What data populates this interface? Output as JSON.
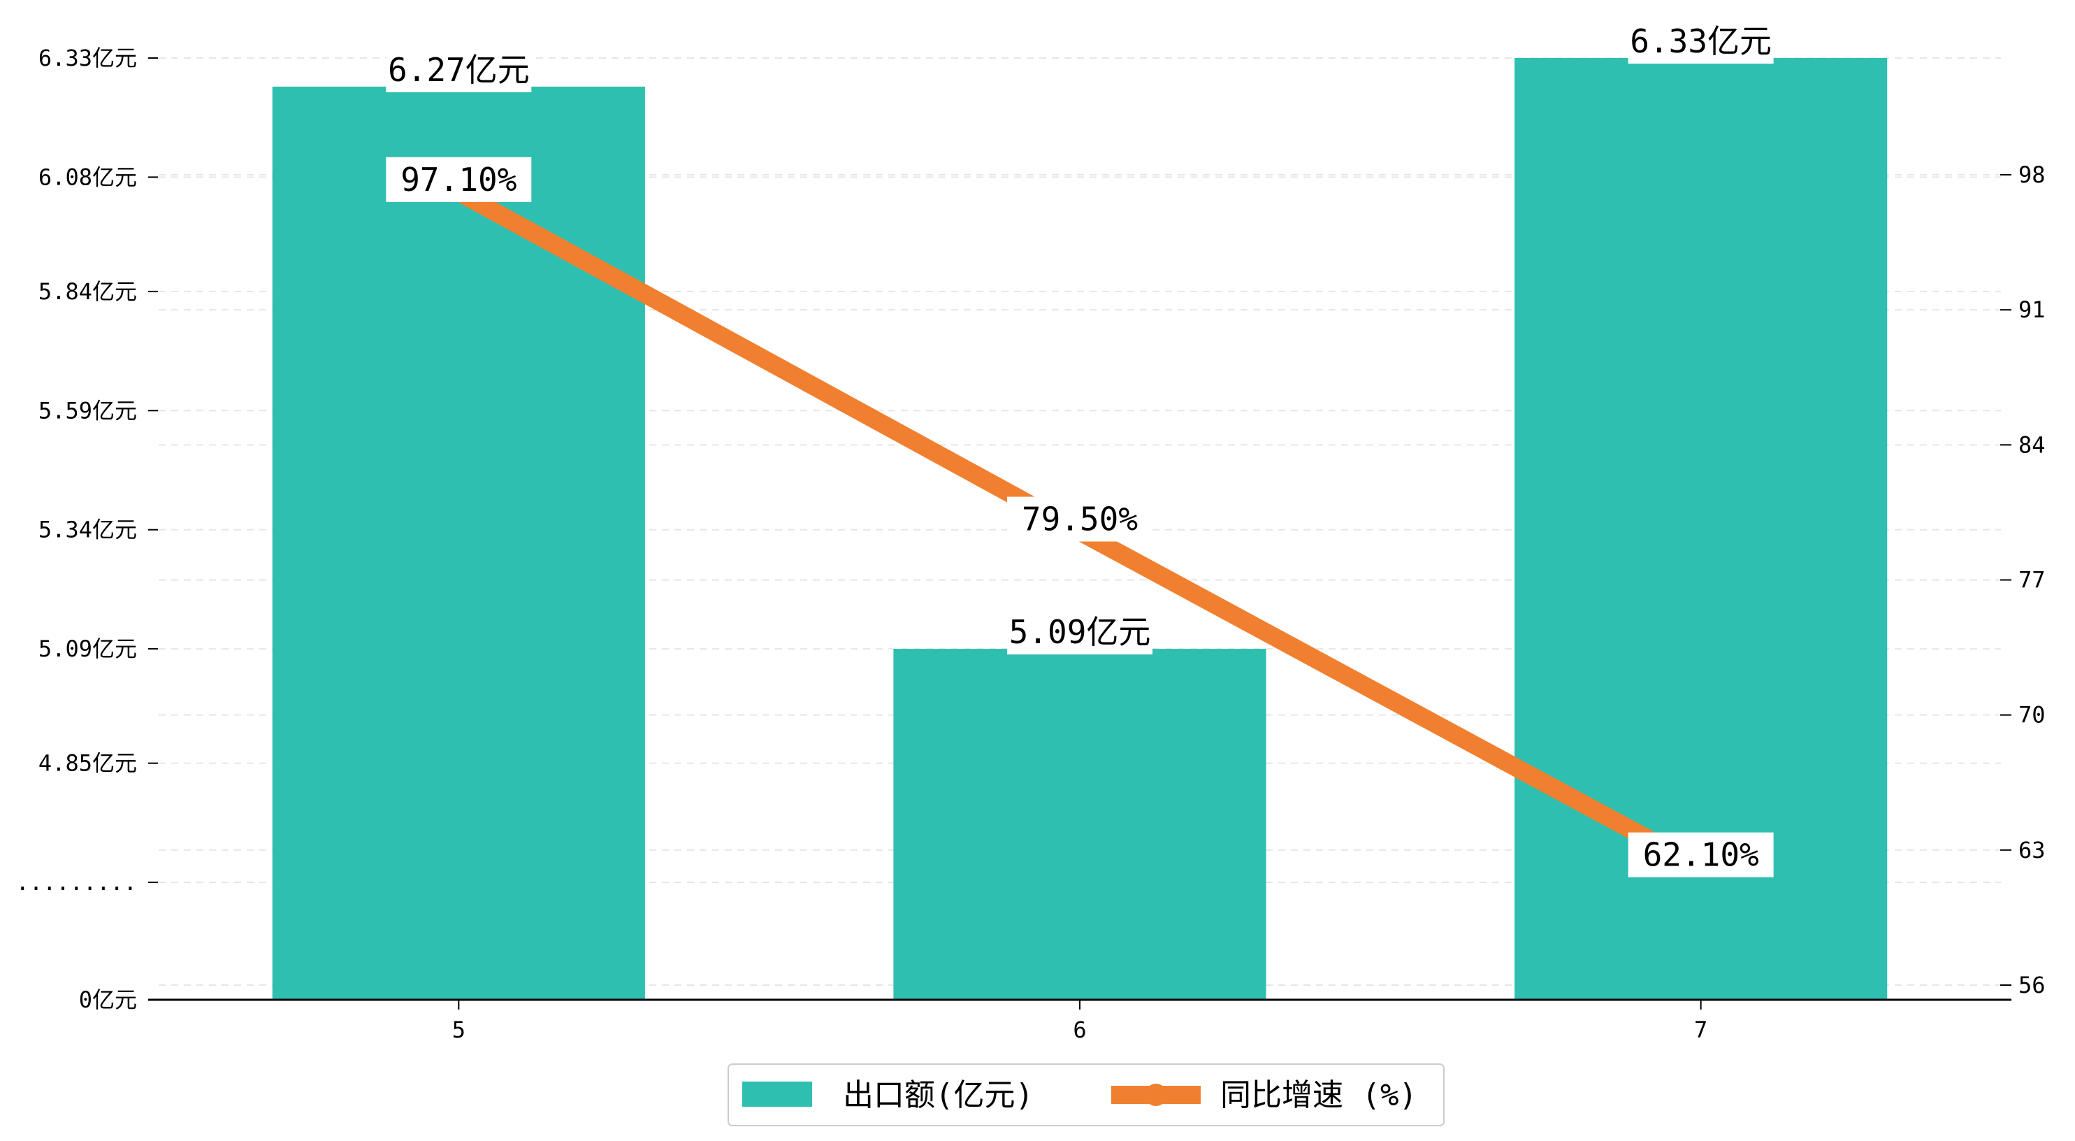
{
  "chart_data": {
    "type": "bar",
    "categories": [
      "5",
      "6",
      "7"
    ],
    "series": [
      {
        "name": "出口额(亿元)",
        "type": "bar",
        "axis": "left",
        "values": [
          6.27,
          5.09,
          6.33
        ],
        "labels": [
          "6.27亿元",
          "5.09亿元",
          "6.33亿元"
        ],
        "color": "#2ebfb0"
      },
      {
        "name": "同比增速 (%)",
        "type": "line",
        "axis": "right",
        "values": [
          97.1,
          79.5,
          62.1
        ],
        "labels": [
          "97.10%",
          "79.50%",
          "62.10%"
        ],
        "color": "#f08030"
      }
    ],
    "y_left": {
      "note": "broken axis: 0 at bottom, then break, then 4.60 to 6.33",
      "ticks": [
        {
          "value": 0,
          "label": "0亿元"
        },
        {
          "value": null,
          "label": "........."
        },
        {
          "value": 4.85,
          "label": "4.85亿元"
        },
        {
          "value": 5.09,
          "label": "5.09亿元"
        },
        {
          "value": 5.34,
          "label": "5.34亿元"
        },
        {
          "value": 5.59,
          "label": "5.59亿元"
        },
        {
          "value": 5.84,
          "label": "5.84亿元"
        },
        {
          "value": 6.08,
          "label": "6.08亿元"
        },
        {
          "value": 6.33,
          "label": "6.33亿元"
        }
      ]
    },
    "y_right": {
      "ylim": [
        56,
        105
      ],
      "ticks": [
        56,
        63,
        70,
        77,
        84,
        91,
        98
      ]
    },
    "grid": "horizontal dashed",
    "legend_position": "bottom-center"
  }
}
